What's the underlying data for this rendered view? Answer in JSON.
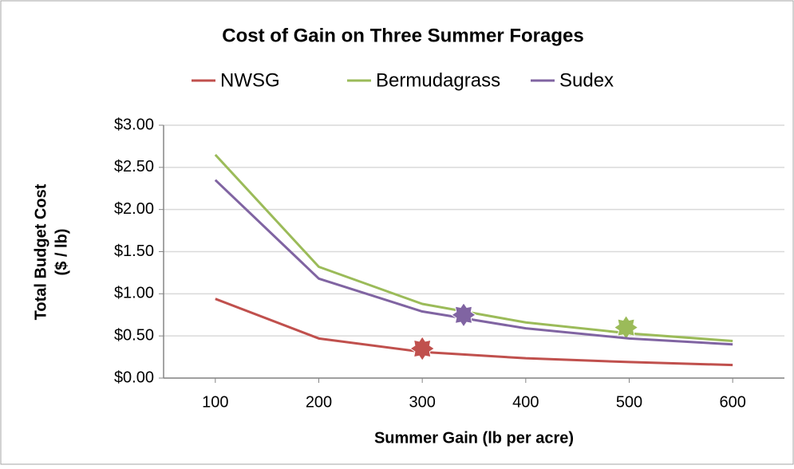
{
  "chart_data": {
    "type": "line",
    "title": "Cost of Gain on Three Summer Forages",
    "x_label": "Summer Gain (lb per acre)",
    "y_label": [
      "Total Budget Cost",
      "($ / lb)"
    ],
    "x": [
      100,
      200,
      300,
      400,
      500,
      600
    ],
    "xlim": [
      50,
      650
    ],
    "xticks": [
      100,
      200,
      300,
      400,
      500,
      600
    ],
    "ylim": [
      0,
      3
    ],
    "yticks": [
      {
        "value": 0,
        "label": "$0.00"
      },
      {
        "value": 0.5,
        "label": "$0.50"
      },
      {
        "value": 1,
        "label": "$1.00"
      },
      {
        "value": 1.5,
        "label": "$1.50"
      },
      {
        "value": 2,
        "label": "$2.00"
      },
      {
        "value": 2.5,
        "label": "$2.50"
      },
      {
        "value": 3,
        "label": "$3.00"
      }
    ],
    "grid": true,
    "legend": "top",
    "series": [
      {
        "name": "NWSG",
        "color": "#c0504d",
        "values": [
          0.94,
          0.47,
          0.31,
          0.235,
          0.19,
          0.155
        ],
        "highlight": {
          "x": 300,
          "y": 0.35
        }
      },
      {
        "name": "Bermudagrass",
        "color": "#9bbb59",
        "values": [
          2.65,
          1.32,
          0.88,
          0.66,
          0.53,
          0.44
        ],
        "highlight": {
          "x": 497,
          "y": 0.6
        }
      },
      {
        "name": "Sudex",
        "color": "#8064a2",
        "values": [
          2.35,
          1.18,
          0.79,
          0.59,
          0.47,
          0.4
        ],
        "highlight": {
          "x": 340,
          "y": 0.75
        }
      }
    ]
  }
}
